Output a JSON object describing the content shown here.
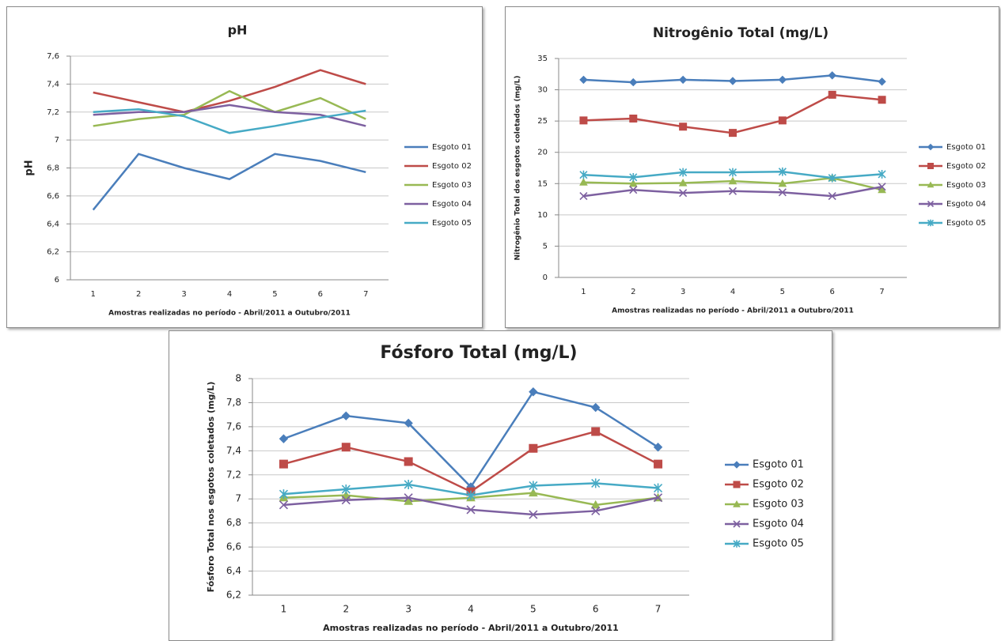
{
  "chart_data": [
    {
      "type": "line",
      "title": "pH",
      "y_label": "pH",
      "x_label": "Amostras realizadas no período -  Abril/2011 a Outubro/2011",
      "categories": [
        "1",
        "2",
        "3",
        "4",
        "5",
        "6",
        "7"
      ],
      "markers": false,
      "grid": true,
      "ylim": [
        6,
        7.6
      ],
      "yticks": [
        6,
        {
          "value": 6.2,
          "label": "6,2"
        },
        {
          "value": 6.4,
          "label": "6,4"
        },
        {
          "value": 6.6,
          "label": "6,6"
        },
        {
          "value": 6.8,
          "label": "6,8"
        },
        7,
        {
          "value": 7.2,
          "label": "7,2"
        },
        {
          "value": 7.4,
          "label": "7,4"
        },
        {
          "value": 7.6,
          "label": "7,6"
        }
      ],
      "series": [
        {
          "name": "Esgoto 01",
          "color": "#4a7ebb",
          "values": [
            6.5,
            6.9,
            6.8,
            6.72,
            6.9,
            6.85,
            6.77
          ]
        },
        {
          "name": "Esgoto 02",
          "color": "#be4b48",
          "values": [
            7.34,
            7.27,
            7.2,
            7.28,
            7.38,
            7.5,
            7.4
          ]
        },
        {
          "name": "Esgoto 03",
          "color": "#98b954",
          "values": [
            7.1,
            7.15,
            7.18,
            7.35,
            7.2,
            7.3,
            7.15
          ]
        },
        {
          "name": "Esgoto 04",
          "color": "#7d60a0",
          "values": [
            7.18,
            7.2,
            7.2,
            7.25,
            7.2,
            7.18,
            7.1
          ]
        },
        {
          "name": "Esgoto 05",
          "color": "#46aac5",
          "values": [
            7.2,
            7.22,
            7.17,
            7.05,
            7.1,
            7.16,
            7.21
          ]
        }
      ]
    },
    {
      "type": "line",
      "title": "Nitrogênio Total (mg/L)",
      "y_label": "Nitrogênio Total dos esgotos coletados (mg/L)",
      "x_label": "Amostras realizadas no período - Abril/2011 a Outubro/2011",
      "categories": [
        "1",
        "2",
        "3",
        "4",
        "5",
        "6",
        "7"
      ],
      "markers": true,
      "grid": true,
      "ylim": [
        0,
        35
      ],
      "yticks": [
        0,
        5,
        10,
        15,
        20,
        25,
        30,
        35
      ],
      "series": [
        {
          "name": "Esgoto 01",
          "color": "#4a7ebb",
          "marker": "diamond",
          "values": [
            31.6,
            31.2,
            31.6,
            31.4,
            31.6,
            32.3,
            31.3
          ]
        },
        {
          "name": "Esgoto 02",
          "color": "#be4b48",
          "marker": "square",
          "values": [
            25.1,
            25.4,
            24.1,
            23.1,
            25.1,
            29.2,
            28.4
          ]
        },
        {
          "name": "Esgoto 03",
          "color": "#98b954",
          "marker": "triangle",
          "values": [
            15.2,
            15,
            15.1,
            15.4,
            15,
            15.9,
            14
          ]
        },
        {
          "name": "Esgoto 04",
          "color": "#7d60a0",
          "marker": "x",
          "values": [
            13,
            14,
            13.5,
            13.8,
            13.6,
            13,
            14.5
          ]
        },
        {
          "name": "Esgoto 05",
          "color": "#46aac5",
          "marker": "star",
          "values": [
            16.4,
            16,
            16.8,
            16.8,
            16.9,
            15.9,
            16.5
          ]
        }
      ]
    },
    {
      "type": "line",
      "title": "Fósforo Total (mg/L)",
      "y_label": "Fósforo Total nos esgotos coletados (mg/L)",
      "x_label": "Amostras realizadas no período - Abril/2011 a Outubro/2011",
      "categories": [
        "1",
        "2",
        "3",
        "4",
        "5",
        "6",
        "7"
      ],
      "markers": true,
      "grid": true,
      "ylim": [
        6.2,
        8
      ],
      "yticks": [
        {
          "value": 6.2,
          "label": "6,2"
        },
        {
          "value": 6.4,
          "label": "6,4"
        },
        {
          "value": 6.6,
          "label": "6,6"
        },
        {
          "value": 6.8,
          "label": "6,8"
        },
        7,
        {
          "value": 7.2,
          "label": "7,2"
        },
        {
          "value": 7.4,
          "label": "7,4"
        },
        {
          "value": 7.6,
          "label": "7,6"
        },
        {
          "value": 7.8,
          "label": "7,8"
        },
        8
      ],
      "series": [
        {
          "name": "Esgoto 01",
          "color": "#4a7ebb",
          "marker": "diamond",
          "values": [
            7.5,
            7.69,
            7.63,
            7.1,
            7.89,
            7.76,
            7.43
          ]
        },
        {
          "name": "Esgoto 02",
          "color": "#be4b48",
          "marker": "square",
          "values": [
            7.29,
            7.43,
            7.31,
            7.06,
            7.42,
            7.56,
            7.29
          ]
        },
        {
          "name": "Esgoto 03",
          "color": "#98b954",
          "marker": "triangle",
          "values": [
            7.01,
            7.03,
            6.98,
            7.01,
            7.05,
            6.95,
            7.01
          ]
        },
        {
          "name": "Esgoto 04",
          "color": "#7d60a0",
          "marker": "x",
          "values": [
            6.95,
            6.99,
            7.01,
            6.91,
            6.87,
            6.9,
            7.01
          ]
        },
        {
          "name": "Esgoto 05",
          "color": "#46aac5",
          "marker": "star",
          "values": [
            7.04,
            7.08,
            7.12,
            7.03,
            7.11,
            7.13,
            7.09
          ]
        }
      ]
    }
  ]
}
